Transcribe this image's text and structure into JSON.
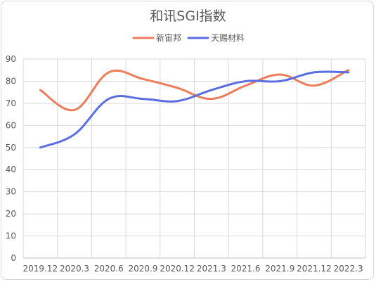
{
  "chart_data": {
    "type": "line",
    "title": "和讯SGI指数",
    "xlabel": "",
    "ylabel": "",
    "categories": [
      "2019.12",
      "2020.3",
      "2020.6",
      "2020.9",
      "2020.12",
      "2021.3",
      "2021.6",
      "2021.9",
      "2021.12",
      "2022.3"
    ],
    "ylim": [
      0,
      90
    ],
    "yticks": [
      0,
      10,
      20,
      30,
      40,
      50,
      60,
      70,
      80,
      90
    ],
    "grid": true,
    "legend_position": "top",
    "series": [
      {
        "name": "新宙邦",
        "color": "#ed7d5a",
        "values": [
          76,
          67,
          84,
          81,
          77,
          72,
          78,
          83,
          78,
          85
        ]
      },
      {
        "name": "天赐材料",
        "color": "#5b6ee1",
        "values": [
          50,
          56,
          72,
          72,
          71,
          76,
          80,
          80,
          84,
          84
        ]
      }
    ]
  }
}
